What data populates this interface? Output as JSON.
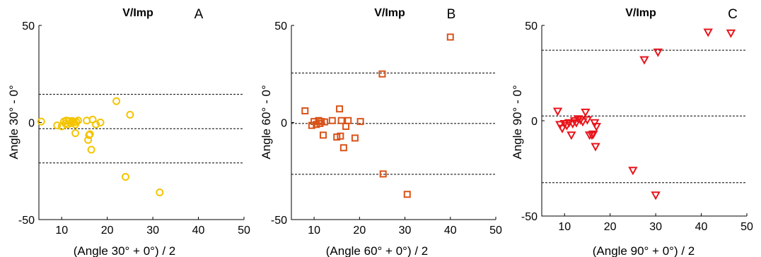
{
  "chart_data": [
    {
      "type": "scatter",
      "panel": "A",
      "title": "V/Imp",
      "xlabel": "(Angle 30° + 0°) / 2",
      "ylabel": "Angle 30° - 0°",
      "xlim": [
        5,
        50
      ],
      "ylim": [
        -50,
        50
      ],
      "xticks": [
        10,
        20,
        30,
        40,
        50
      ],
      "yticks": [
        -50,
        0,
        50
      ],
      "marker": "circle",
      "color": "#f5c400",
      "reference_lines": [
        14.5,
        -3.2,
        -20.8
      ],
      "points": [
        [
          5.5,
          0.5
        ],
        [
          9.0,
          -1.5
        ],
        [
          10.0,
          -2.0
        ],
        [
          10.5,
          0.5
        ],
        [
          10.8,
          -0.5
        ],
        [
          11.0,
          1.0
        ],
        [
          11.3,
          -1.0
        ],
        [
          11.6,
          0.8
        ],
        [
          12.0,
          -0.3
        ],
        [
          12.3,
          0.8
        ],
        [
          12.7,
          0.2
        ],
        [
          13.0,
          -1.0
        ],
        [
          13.2,
          0.3
        ],
        [
          13.6,
          1.0
        ],
        [
          13.0,
          -5.5
        ],
        [
          15.5,
          1.0
        ],
        [
          15.8,
          -9.0
        ],
        [
          16.0,
          -6.5
        ],
        [
          16.2,
          -6.0
        ],
        [
          16.5,
          -14.0
        ],
        [
          16.8,
          1.5
        ],
        [
          17.5,
          -1.0
        ],
        [
          18.5,
          0.0
        ],
        [
          22.0,
          11.0
        ],
        [
          25.0,
          4.0
        ],
        [
          24.0,
          -28.0
        ],
        [
          31.5,
          -36.0
        ]
      ]
    },
    {
      "type": "scatter",
      "panel": "B",
      "title": "V/Imp",
      "xlabel": "(Angle 60° + 0°) / 2",
      "ylabel": "Angle 60° - 0°",
      "xlim": [
        5,
        50
      ],
      "ylim": [
        -50,
        50
      ],
      "xticks": [
        10,
        20,
        30,
        40,
        50
      ],
      "yticks": [
        -50,
        0,
        50
      ],
      "marker": "square",
      "color": "#d95319",
      "reference_lines": [
        25.5,
        -0.5,
        -26.7
      ],
      "points": [
        [
          8.0,
          6.0
        ],
        [
          9.5,
          -1.5
        ],
        [
          10.0,
          0.5
        ],
        [
          10.5,
          -1.0
        ],
        [
          11.0,
          1.0
        ],
        [
          11.3,
          -0.5
        ],
        [
          11.6,
          0.5
        ],
        [
          12.0,
          -6.5
        ],
        [
          12.3,
          0.3
        ],
        [
          14.0,
          1.0
        ],
        [
          15.0,
          -7.5
        ],
        [
          15.6,
          7.0
        ],
        [
          15.8,
          -7.0
        ],
        [
          16.0,
          1.0
        ],
        [
          16.5,
          -13.0
        ],
        [
          17.0,
          -2.0
        ],
        [
          17.5,
          1.0
        ],
        [
          19.0,
          -8.0
        ],
        [
          20.2,
          0.5
        ],
        [
          25.0,
          25.0
        ],
        [
          25.2,
          -26.5
        ],
        [
          30.5,
          -37.0
        ],
        [
          40.0,
          44.0
        ]
      ]
    },
    {
      "type": "scatter",
      "panel": "C",
      "title": "V/Imp",
      "xlabel": "(Angle 90° + 0°) / 2",
      "ylabel": "Angle 90° - 0°",
      "xlim": [
        5,
        50
      ],
      "ylim": [
        -50,
        50
      ],
      "xticks": [
        10,
        20,
        30,
        40,
        50
      ],
      "yticks": [
        -50,
        0,
        50
      ],
      "marker": "triangle-down",
      "color": "#e8141b",
      "reference_lines": [
        37.0,
        2.5,
        -32.5
      ],
      "points": [
        [
          8.5,
          5.0
        ],
        [
          9.0,
          -2.0
        ],
        [
          9.5,
          -4.0
        ],
        [
          10.0,
          -1.5
        ],
        [
          10.5,
          -2.5
        ],
        [
          11.0,
          -1.0
        ],
        [
          11.5,
          -7.5
        ],
        [
          11.8,
          -1.5
        ],
        [
          12.2,
          0.0
        ],
        [
          12.6,
          -1.0
        ],
        [
          13.0,
          1.0
        ],
        [
          13.5,
          0.5
        ],
        [
          14.0,
          -0.5
        ],
        [
          14.6,
          4.5
        ],
        [
          15.0,
          0.5
        ],
        [
          15.5,
          -7.5
        ],
        [
          16.0,
          -7.5
        ],
        [
          16.3,
          -7.0
        ],
        [
          16.6,
          -1.0
        ],
        [
          16.8,
          -13.5
        ],
        [
          17.0,
          -3.0
        ],
        [
          25.0,
          -26.0
        ],
        [
          27.5,
          32.0
        ],
        [
          30.0,
          -39.0
        ],
        [
          30.5,
          36.0
        ],
        [
          41.5,
          46.5
        ],
        [
          46.5,
          46.0
        ]
      ]
    }
  ]
}
